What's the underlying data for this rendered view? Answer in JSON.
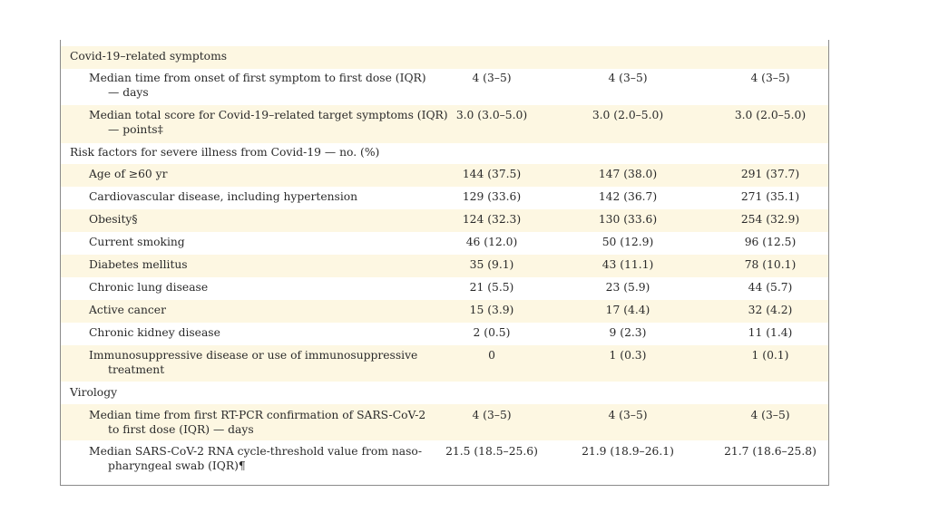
{
  "table": {
    "rows": [
      {
        "kind": "section",
        "label_lines": [
          "Covid-19–related symptoms"
        ],
        "values": [
          "",
          "",
          ""
        ]
      },
      {
        "kind": "item",
        "label_lines": [
          "Median time from onset of first symptom to first dose (IQR)",
          "— days"
        ],
        "values": [
          "4 (3–5)",
          "4 (3–5)",
          "4 (3–5)"
        ]
      },
      {
        "kind": "item",
        "label_lines": [
          "Median total score for Covid-19–related target symptoms (IQR)",
          "— points‡"
        ],
        "values": [
          "3.0 (3.0–5.0)",
          "3.0 (2.0–5.0)",
          "3.0 (2.0–5.0)"
        ]
      },
      {
        "kind": "section",
        "label_lines": [
          "Risk factors for severe illness from Covid-19 — no. (%)"
        ],
        "values": [
          "",
          "",
          ""
        ]
      },
      {
        "kind": "item",
        "label_lines": [
          "Age of ≥60 yr"
        ],
        "values": [
          "144 (37.5)",
          "147 (38.0)",
          "291 (37.7)"
        ]
      },
      {
        "kind": "item",
        "label_lines": [
          "Cardiovascular disease, including hypertension"
        ],
        "values": [
          "129 (33.6)",
          "142 (36.7)",
          "271 (35.1)"
        ]
      },
      {
        "kind": "item",
        "label_lines": [
          "Obesity§"
        ],
        "values": [
          "124 (32.3)",
          "130 (33.6)",
          "254 (32.9)"
        ]
      },
      {
        "kind": "item",
        "label_lines": [
          "Current smoking"
        ],
        "values": [
          "46 (12.0)",
          "50 (12.9)",
          "96 (12.5)"
        ]
      },
      {
        "kind": "item",
        "label_lines": [
          "Diabetes mellitus"
        ],
        "values": [
          "35 (9.1)",
          "43 (11.1)",
          "78 (10.1)"
        ]
      },
      {
        "kind": "item",
        "label_lines": [
          "Chronic lung disease"
        ],
        "values": [
          "21 (5.5)",
          "23 (5.9)",
          "44 (5.7)"
        ]
      },
      {
        "kind": "item",
        "label_lines": [
          "Active cancer"
        ],
        "values": [
          "15 (3.9)",
          "17 (4.4)",
          "32 (4.2)"
        ]
      },
      {
        "kind": "item",
        "label_lines": [
          "Chronic kidney disease"
        ],
        "values": [
          "2 (0.5)",
          "9 (2.3)",
          "11 (1.4)"
        ]
      },
      {
        "kind": "item",
        "label_lines": [
          "Immunosuppressive disease or use of immunosuppressive",
          "treatment"
        ],
        "values": [
          "0",
          "1 (0.3)",
          "1 (0.1)"
        ]
      },
      {
        "kind": "section",
        "label_lines": [
          "Virology"
        ],
        "values": [
          "",
          "",
          ""
        ]
      },
      {
        "kind": "item",
        "label_lines": [
          "Median time from first RT-PCR confirmation of SARS-CoV-2",
          "to first dose (IQR) — days"
        ],
        "values": [
          "4 (3–5)",
          "4 (3–5)",
          "4 (3–5)"
        ]
      },
      {
        "kind": "item",
        "label_lines": [
          "Median SARS-CoV-2 RNA cycle-threshold value from naso-",
          "pharyngeal swab (IQR)¶"
        ],
        "values": [
          "21.5 (18.5–25.6)",
          "21.9 (18.9–26.1)",
          "21.7 (18.6–25.8)"
        ]
      }
    ]
  },
  "colors": {
    "row_shade": "#fdf7e2",
    "border": "#8a8a8a",
    "text": "#2a2a2a"
  }
}
